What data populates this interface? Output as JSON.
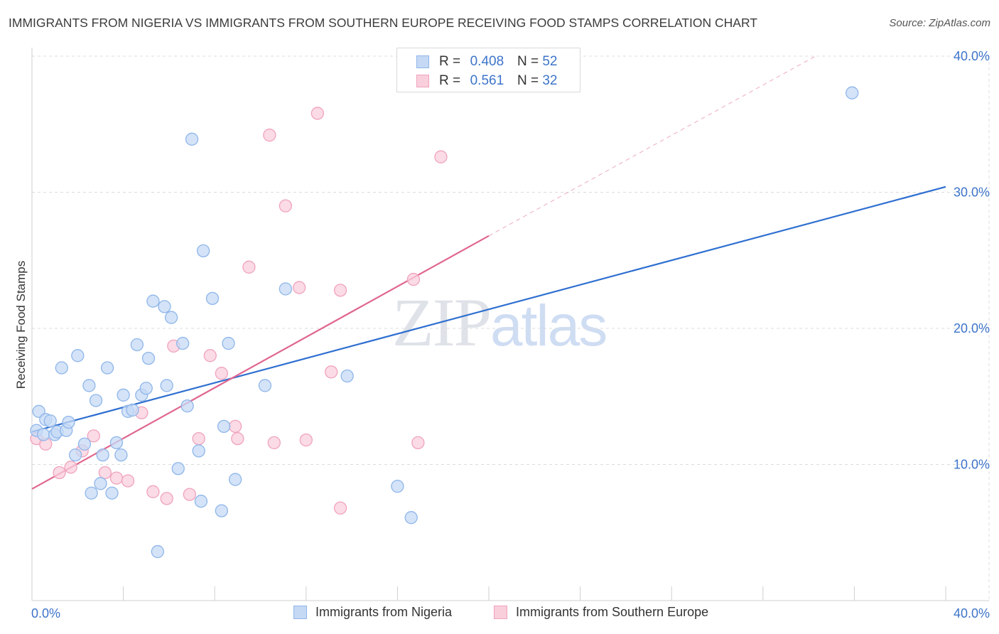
{
  "title": "IMMIGRANTS FROM NIGERIA VS IMMIGRANTS FROM SOUTHERN EUROPE RECEIVING FOOD STAMPS CORRELATION CHART",
  "source": {
    "label": "Source:",
    "name": "ZipAtlas.com"
  },
  "watermark": {
    "zip": "ZIP",
    "atlas": "atlas"
  },
  "legend": [
    {
      "r_label": "R =",
      "r_value": "0.408",
      "n_label": "N =",
      "n_value": "52"
    },
    {
      "r_label": "R =",
      "r_value": "0.561",
      "n_label": "N =",
      "n_value": "32"
    }
  ],
  "chart_data": {
    "type": "scatter",
    "title": "IMMIGRANTS FROM NIGERIA VS IMMIGRANTS FROM SOUTHERN EUROPE RECEIVING FOOD STAMPS CORRELATION CHART",
    "xlabel": "",
    "ylabel": "Receiving Food Stamps",
    "xlim": [
      0,
      40
    ],
    "ylim": [
      0,
      40
    ],
    "x_tick_labels": [
      "0.0%",
      "40.0%"
    ],
    "y_tick_labels": [
      "10.0%",
      "20.0%",
      "30.0%",
      "40.0%"
    ],
    "y_ticks": [
      10,
      20,
      30,
      40
    ],
    "grid": true,
    "legend_position": "top-center",
    "series": [
      {
        "name": "Immigrants from Nigeria",
        "color": "#8fb6ea",
        "fill": "#c5d9f5",
        "line_color": "#2e6fd0",
        "r": 0.408,
        "n": 52,
        "trend": {
          "x0": 0,
          "y0": 12.4,
          "x1": 40,
          "y1": 30.4
        },
        "points": [
          [
            0.2,
            12.5
          ],
          [
            0.3,
            13.9
          ],
          [
            0.5,
            12.2
          ],
          [
            0.6,
            13.3
          ],
          [
            0.8,
            13.2
          ],
          [
            1.0,
            12.2
          ],
          [
            1.1,
            12.4
          ],
          [
            1.5,
            12.5
          ],
          [
            1.6,
            13.1
          ],
          [
            1.3,
            17.1
          ],
          [
            2.0,
            18.0
          ],
          [
            1.9,
            10.7
          ],
          [
            2.3,
            11.5
          ],
          [
            2.5,
            15.8
          ],
          [
            2.6,
            7.9
          ],
          [
            2.8,
            14.7
          ],
          [
            3.0,
            8.6
          ],
          [
            3.1,
            10.7
          ],
          [
            3.3,
            17.1
          ],
          [
            3.5,
            7.9
          ],
          [
            3.7,
            11.6
          ],
          [
            3.9,
            10.7
          ],
          [
            4.0,
            15.1
          ],
          [
            4.2,
            13.9
          ],
          [
            4.4,
            14.0
          ],
          [
            4.6,
            18.8
          ],
          [
            4.8,
            15.1
          ],
          [
            5.0,
            15.6
          ],
          [
            5.1,
            17.8
          ],
          [
            5.3,
            22.0
          ],
          [
            5.5,
            3.6
          ],
          [
            5.8,
            21.6
          ],
          [
            5.9,
            15.8
          ],
          [
            6.1,
            20.8
          ],
          [
            6.4,
            9.7
          ],
          [
            6.6,
            18.9
          ],
          [
            6.8,
            14.3
          ],
          [
            7.0,
            33.9
          ],
          [
            7.3,
            11.0
          ],
          [
            7.4,
            7.3
          ],
          [
            7.5,
            25.7
          ],
          [
            7.9,
            22.2
          ],
          [
            8.3,
            6.6
          ],
          [
            8.4,
            12.8
          ],
          [
            8.6,
            18.9
          ],
          [
            8.9,
            8.9
          ],
          [
            10.2,
            15.8
          ],
          [
            11.1,
            22.9
          ],
          [
            13.8,
            16.5
          ],
          [
            16.0,
            8.4
          ],
          [
            16.6,
            6.1
          ],
          [
            35.9,
            37.3
          ]
        ]
      },
      {
        "name": "Immigrants from Southern Europe",
        "color": "#f0a3bd",
        "fill": "#f9cfdc",
        "line_color": "#e0668f",
        "r": 0.561,
        "n": 32,
        "trend": {
          "x0": 0,
          "y0": 8.2,
          "x1": 20,
          "y1": 26.8,
          "dashed_to": {
            "x": 34.3,
            "y": 40.0
          }
        },
        "points": [
          [
            0.2,
            11.9
          ],
          [
            0.6,
            11.5
          ],
          [
            1.2,
            9.4
          ],
          [
            1.7,
            9.8
          ],
          [
            2.2,
            11.0
          ],
          [
            2.7,
            12.1
          ],
          [
            3.2,
            9.4
          ],
          [
            3.7,
            9.0
          ],
          [
            4.2,
            8.8
          ],
          [
            4.8,
            13.8
          ],
          [
            5.3,
            8.0
          ],
          [
            5.9,
            7.5
          ],
          [
            6.2,
            18.7
          ],
          [
            6.9,
            7.8
          ],
          [
            7.3,
            11.9
          ],
          [
            7.8,
            18.0
          ],
          [
            8.3,
            16.7
          ],
          [
            8.9,
            12.8
          ],
          [
            9.0,
            11.9
          ],
          [
            9.5,
            24.5
          ],
          [
            10.4,
            34.2
          ],
          [
            10.6,
            11.6
          ],
          [
            11.1,
            29.0
          ],
          [
            11.7,
            23.0
          ],
          [
            12.0,
            11.8
          ],
          [
            12.5,
            35.8
          ],
          [
            13.1,
            16.8
          ],
          [
            13.5,
            22.8
          ],
          [
            13.5,
            6.8
          ],
          [
            16.7,
            23.6
          ],
          [
            16.9,
            11.6
          ],
          [
            17.9,
            32.6
          ]
        ]
      }
    ]
  }
}
